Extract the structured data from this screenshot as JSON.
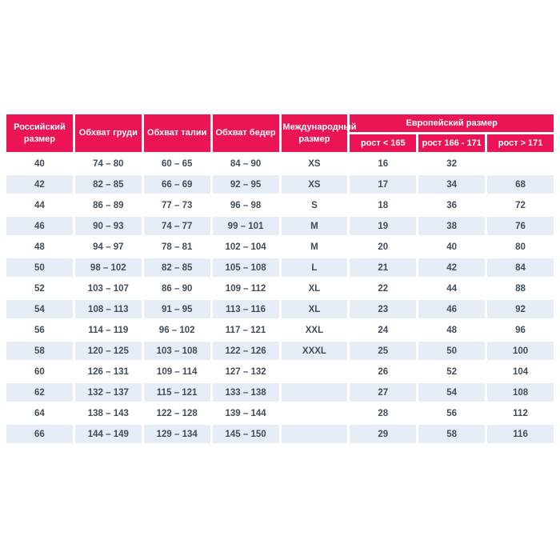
{
  "page": {
    "background": "#ffffff"
  },
  "table": {
    "colors": {
      "header_bg": "#EB1556",
      "header_text": "#ffffff",
      "body_text": "#414E59",
      "row_bg": "#ffffff",
      "row_alt_bg": "#E7EDF6"
    },
    "headers": {
      "russian_size": "Российский размер",
      "chest": "Обхват груди",
      "waist": "Обхват талии",
      "hips": "Обхват бедер",
      "international_size": "Международный размер",
      "european_size_group": "Европейский размер",
      "height_lt_165": "рост < 165",
      "height_166_171": "рост 166 - 171",
      "height_gt_171": "рост > 171"
    },
    "rows": [
      [
        "40",
        "74 – 80",
        "60 – 65",
        "84 – 90",
        "XS",
        "16",
        "32",
        ""
      ],
      [
        "42",
        "82 – 85",
        "66 – 69",
        "92 – 95",
        "XS",
        "17",
        "34",
        "68"
      ],
      [
        "44",
        "86 – 89",
        "77 – 73",
        "96 – 98",
        "S",
        "18",
        "36",
        "72"
      ],
      [
        "46",
        "90 – 93",
        "74 – 77",
        "99 – 101",
        "M",
        "19",
        "38",
        "76"
      ],
      [
        "48",
        "94 – 97",
        "78 – 81",
        "102 – 104",
        "M",
        "20",
        "40",
        "80"
      ],
      [
        "50",
        "98 – 102",
        "82 – 85",
        "105 – 108",
        "L",
        "21",
        "42",
        "84"
      ],
      [
        "52",
        "103 – 107",
        "86 – 90",
        "109 – 112",
        "XL",
        "22",
        "44",
        "88"
      ],
      [
        "54",
        "108 – 113",
        "91 – 95",
        "113 – 116",
        "XL",
        "23",
        "46",
        "92"
      ],
      [
        "56",
        "114 – 119",
        "96 – 102",
        "117 – 121",
        "XXL",
        "24",
        "48",
        "96"
      ],
      [
        "58",
        "120 – 125",
        "103 – 108",
        "122 – 126",
        "XXXL",
        "25",
        "50",
        "100"
      ],
      [
        "60",
        "126 – 131",
        "109 – 114",
        "127 – 132",
        "",
        "26",
        "52",
        "104"
      ],
      [
        "62",
        "132 – 137",
        "115 – 121",
        "133 – 138",
        "",
        "27",
        "54",
        "108"
      ],
      [
        "64",
        "138 – 143",
        "122 – 128",
        "139 – 144",
        "",
        "28",
        "56",
        "112"
      ],
      [
        "66",
        "144 – 149",
        "129 – 134",
        "145 – 150",
        "",
        "29",
        "58",
        "116"
      ]
    ]
  }
}
